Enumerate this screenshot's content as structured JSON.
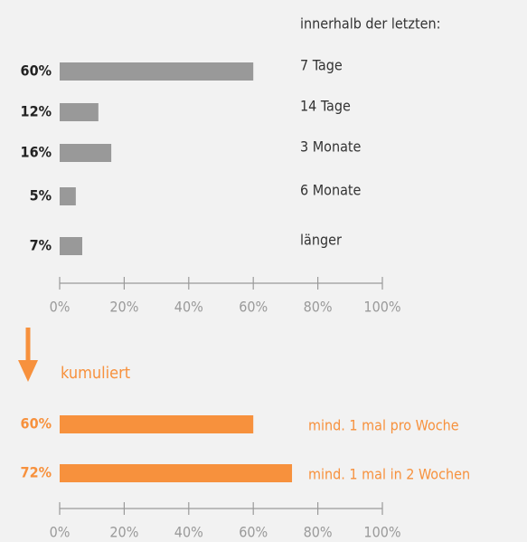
{
  "chart_data": [
    {
      "type": "barh",
      "subtitle": "innerhalb der letzten:",
      "categories": [
        "7 Tage",
        "14 Tage",
        "3 Monate",
        "6 Monate",
        "länger"
      ],
      "values": [
        60,
        12,
        16,
        5,
        7
      ],
      "value_labels": [
        "60%",
        "12%",
        "16%",
        "5%",
        "7%"
      ],
      "color": "#999999",
      "xlim": [
        0,
        100
      ],
      "xticks": [
        {
          "value": 0,
          "label": "0%"
        },
        {
          "value": 20,
          "label": "20%"
        },
        {
          "value": 40,
          "label": "40%"
        },
        {
          "value": 60,
          "label": "60%"
        },
        {
          "value": 80,
          "label": "80%"
        },
        {
          "value": 100,
          "label": "100%"
        }
      ]
    },
    {
      "type": "barh",
      "title": "kumuliert",
      "categories": [
        "mind. 1 mal pro Woche",
        "mind. 1 mal in 2 Wochen"
      ],
      "values": [
        60,
        72
      ],
      "value_labels": [
        "60%",
        "72%"
      ],
      "color": "#f7913d",
      "xlim": [
        0,
        100
      ],
      "xticks": [
        {
          "value": 0,
          "label": "0%"
        },
        {
          "value": 20,
          "label": "20%"
        },
        {
          "value": 40,
          "label": "40%"
        },
        {
          "value": 60,
          "label": "60%"
        },
        {
          "value": 80,
          "label": "80%"
        },
        {
          "value": 100,
          "label": "100%"
        }
      ]
    }
  ]
}
